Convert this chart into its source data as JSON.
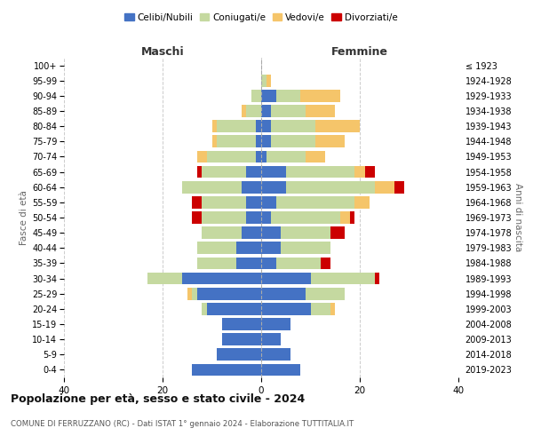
{
  "age_groups": [
    "0-4",
    "5-9",
    "10-14",
    "15-19",
    "20-24",
    "25-29",
    "30-34",
    "35-39",
    "40-44",
    "45-49",
    "50-54",
    "55-59",
    "60-64",
    "65-69",
    "70-74",
    "75-79",
    "80-84",
    "85-89",
    "90-94",
    "95-99",
    "100+"
  ],
  "birth_years": [
    "2019-2023",
    "2014-2018",
    "2009-2013",
    "2004-2008",
    "1999-2003",
    "1994-1998",
    "1989-1993",
    "1984-1988",
    "1979-1983",
    "1974-1978",
    "1969-1973",
    "1964-1968",
    "1959-1963",
    "1954-1958",
    "1949-1953",
    "1944-1948",
    "1939-1943",
    "1934-1938",
    "1929-1933",
    "1924-1928",
    "≤ 1923"
  ],
  "colors": {
    "celibi": "#4472c4",
    "coniugati": "#c5d9a0",
    "vedovi": "#f5c56a",
    "divorziati": "#cc0000"
  },
  "maschi": {
    "celibi": [
      14,
      9,
      8,
      8,
      11,
      13,
      16,
      5,
      5,
      4,
      3,
      3,
      4,
      3,
      1,
      1,
      1,
      0,
      0,
      0,
      0
    ],
    "coniugati": [
      0,
      0,
      0,
      0,
      1,
      1,
      7,
      8,
      8,
      8,
      9,
      9,
      12,
      9,
      10,
      8,
      8,
      3,
      2,
      0,
      0
    ],
    "vedovi": [
      0,
      0,
      0,
      0,
      0,
      1,
      0,
      0,
      0,
      0,
      0,
      0,
      0,
      0,
      2,
      1,
      1,
      1,
      0,
      0,
      0
    ],
    "divorziati": [
      0,
      0,
      0,
      0,
      0,
      0,
      0,
      0,
      0,
      0,
      2,
      2,
      0,
      1,
      0,
      0,
      0,
      0,
      0,
      0,
      0
    ]
  },
  "femmine": {
    "celibi": [
      8,
      6,
      4,
      6,
      10,
      9,
      10,
      3,
      4,
      4,
      2,
      3,
      5,
      5,
      1,
      2,
      2,
      2,
      3,
      0,
      0
    ],
    "coniugati": [
      0,
      0,
      0,
      0,
      4,
      8,
      13,
      9,
      10,
      10,
      14,
      16,
      18,
      14,
      8,
      9,
      9,
      7,
      5,
      1,
      0
    ],
    "vedovi": [
      0,
      0,
      0,
      0,
      1,
      0,
      0,
      0,
      0,
      0,
      2,
      3,
      4,
      2,
      4,
      6,
      9,
      6,
      8,
      1,
      0
    ],
    "divorziati": [
      0,
      0,
      0,
      0,
      0,
      0,
      1,
      2,
      0,
      3,
      1,
      0,
      2,
      2,
      0,
      0,
      0,
      0,
      0,
      0,
      0
    ]
  },
  "xlim": [
    -40,
    40
  ],
  "xticks": [
    -40,
    -20,
    0,
    20,
    40
  ],
  "xticklabels": [
    "40",
    "20",
    "0",
    "20",
    "40"
  ],
  "title": "Popolazione per età, sesso e stato civile - 2024",
  "subtitle": "COMUNE DI FERRUZZANO (RC) - Dati ISTAT 1° gennaio 2024 - Elaborazione TUTTITALIA.IT",
  "ylabel_left": "Fasce di età",
  "ylabel_right": "Anni di nascita",
  "maschi_label": "Maschi",
  "femmine_label": "Femmine",
  "legend_labels": [
    "Celibi/Nubili",
    "Coniugati/e",
    "Vedovi/e",
    "Divorziati/e"
  ],
  "background_color": "#ffffff",
  "grid_color": "#cccccc"
}
